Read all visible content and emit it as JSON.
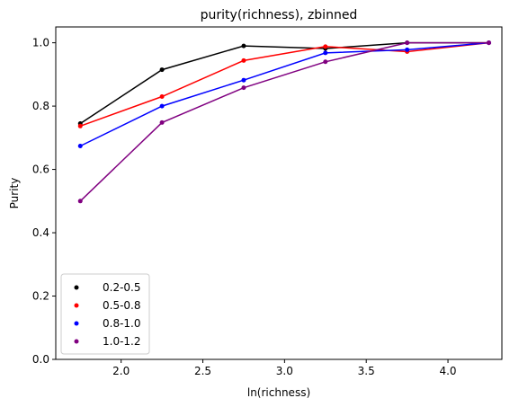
{
  "chart_data": {
    "type": "line",
    "title": "purity(richness), zbinned",
    "xlabel": "ln(richness)",
    "ylabel": "Purity",
    "xlim": [
      1.6,
      4.33
    ],
    "ylim": [
      0.0,
      1.05
    ],
    "xticks": [
      2.0,
      2.5,
      3.0,
      3.5,
      4.0
    ],
    "xtick_labels": [
      "2.0",
      "2.5",
      "3.0",
      "3.5",
      "4.0"
    ],
    "yticks": [
      0.0,
      0.2,
      0.4,
      0.6,
      0.8,
      1.0
    ],
    "ytick_labels": [
      "0.0",
      "0.2",
      "0.4",
      "0.6",
      "0.8",
      "1.0"
    ],
    "grid": false,
    "legend_position": "lower-left",
    "x": [
      1.75,
      2.25,
      2.75,
      3.25,
      3.75,
      4.25
    ],
    "series": [
      {
        "name": "0.2-0.5",
        "color": "#000000",
        "values": [
          0.745,
          0.915,
          0.99,
          0.982,
          1.0,
          1.0
        ]
      },
      {
        "name": "0.5-0.8",
        "color": "#ff0000",
        "values": [
          0.737,
          0.83,
          0.944,
          0.988,
          0.972,
          1.0
        ]
      },
      {
        "name": "0.8-1.0",
        "color": "#0000ff",
        "values": [
          0.674,
          0.8,
          0.882,
          0.968,
          0.978,
          1.0
        ]
      },
      {
        "name": "1.0-1.2",
        "color": "#800080",
        "values": [
          0.5,
          0.748,
          0.858,
          0.94,
          1.0,
          1.0
        ]
      }
    ]
  }
}
